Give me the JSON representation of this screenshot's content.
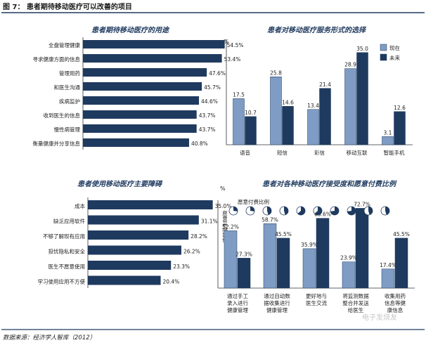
{
  "figure": {
    "title": "图 7：  患者期待移动医疗可以改善的项目",
    "source": "数据来源：经济学人智库（2012）",
    "watermark": "电子发烧友",
    "colors": {
      "dark": "#1f3a5f",
      "light": "#7f9cc4",
      "rule": "#1f3a5f"
    }
  },
  "chart_data": [
    {
      "type": "bar",
      "orientation": "horizontal",
      "title": "患者期待移动医疗的用途",
      "categories": [
        "全盘管理健康",
        "寻求健康方面的信息",
        "管理用药",
        "和医生沟通",
        "疾病监护",
        "收到医生的信息",
        "慢性病管理",
        "衡量健康并分享信息"
      ],
      "values": [
        54.5,
        53.4,
        47.6,
        45.7,
        44.6,
        43.7,
        43.7,
        40.8
      ],
      "value_labels": [
        "54.5%",
        "53.4%",
        "47.6%",
        "45.7%",
        "44.6%",
        "43.7%",
        "43.7%",
        "40.8%"
      ],
      "xlim": [
        0,
        60
      ]
    },
    {
      "type": "bar",
      "title": "患者对移动医疗服务形式的选择",
      "unit": "%",
      "categories": [
        "语音",
        "短信",
        "彩信",
        "移动互联",
        "智能手机"
      ],
      "series": [
        {
          "name": "现在",
          "values": [
            17.5,
            25.8,
            13.4,
            28.9,
            3.1
          ],
          "labels": [
            "17.5",
            "25.8",
            "13.4",
            "28.9",
            "3.1"
          ]
        },
        {
          "name": "未来",
          "values": [
            10.7,
            14.6,
            21.4,
            35.0,
            12.6
          ],
          "labels": [
            "10.7",
            "14.6",
            "21.4",
            "35.0",
            "12.6"
          ]
        }
      ],
      "ylim": [
        0,
        40
      ],
      "legend": "right"
    },
    {
      "type": "bar",
      "orientation": "horizontal",
      "title": "患者使用移动医疗主要障碍",
      "categories": [
        "成本",
        "缺乏应用软件",
        "不够了解现有应用",
        "担忧隐私和安全",
        "医生不愿意使用",
        "学习使用应用不方便"
      ],
      "values": [
        35.0,
        31.1,
        28.2,
        26.2,
        23.3,
        20.4
      ],
      "value_labels": [
        "35.0%",
        "31.1%",
        "28.2%",
        "26.2%",
        "23.3%",
        "20.4%"
      ],
      "xlim": [
        0,
        40
      ]
    },
    {
      "type": "bar",
      "title": "患者对各种移动医疗接受度和愿意付费比例",
      "unit": "%",
      "ylabel": "愿意采纳比例",
      "legend_label": "愿意付费比例",
      "categories": [
        [
          "通过手工",
          "录入进行",
          "健康管理"
        ],
        [
          "通过自动数",
          "据收集进行",
          "健康管理"
        ],
        [
          "更好地与",
          "医生交流"
        ],
        [
          "将监测数据",
          "整合并发送",
          "给医生"
        ],
        [
          "收集用药",
          "信息等健",
          "康信息"
        ]
      ],
      "series": [
        {
          "values": [
            52.2,
            58.7,
            35.9,
            23.9,
            17.4
          ],
          "labels": [
            "52.2%",
            "58.7%",
            "35.9%",
            "23.9%",
            "17.4%"
          ]
        },
        {
          "values": [
            27.3,
            45.5,
            63.6,
            72.7,
            45.5
          ],
          "labels": [
            "27.3%",
            "45.5%",
            "63.6%",
            "72.7%",
            "45.5%"
          ]
        }
      ],
      "ylim": [
        0,
        80
      ]
    }
  ]
}
